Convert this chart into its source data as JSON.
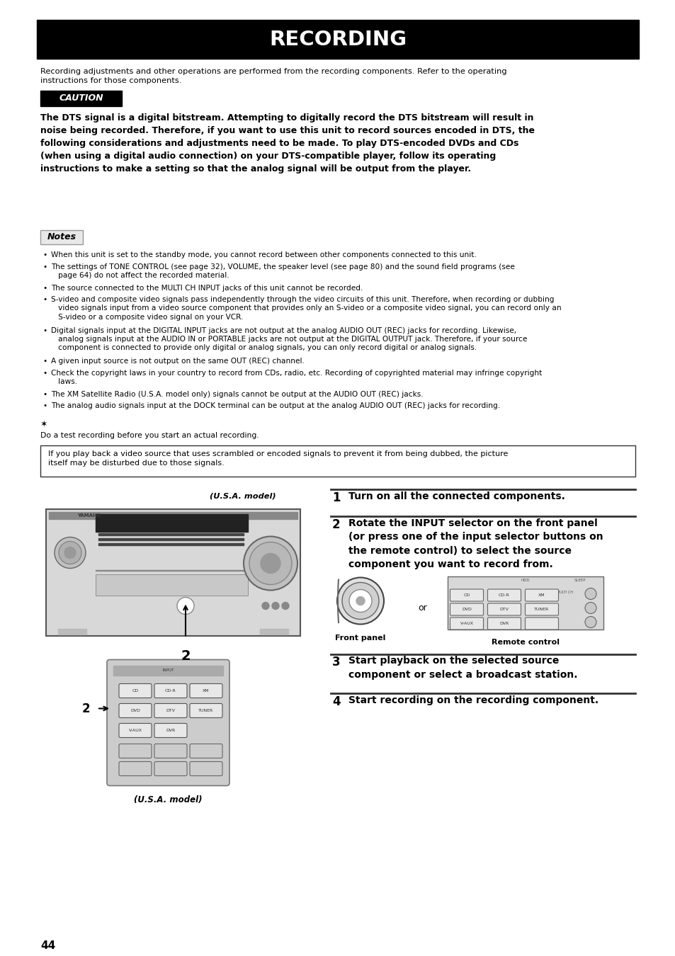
{
  "page_bg": "#ffffff",
  "title": "RECORDING",
  "title_bg": "#000000",
  "title_color": "#ffffff",
  "intro_text": "Recording adjustments and other operations are performed from the recording components. Refer to the operating\ninstructions for those components.",
  "caution_label": "CAUTION",
  "caution_bold_text": "The DTS signal is a digital bitstream. Attempting to digitally record the DTS bitstream will result in\nnoise being recorded. Therefore, if you want to use this unit to record sources encoded in DTS, the\nfollowing considerations and adjustments need to be made. To play DTS-encoded DVDs and CDs\n(when using a digital audio connection) on your DTS-compatible player, follow its operating\ninstructions to make a setting so that the analog signal will be output from the player.",
  "notes_label": "Notes",
  "notes_bullets": [
    "When this unit is set to the standby mode, you cannot record between other components connected to this unit.",
    "The settings of TONE CONTROL (see page 32), VOLUME, the speaker level (see page 80) and the sound field programs (see\n   page 64) do not affect the recorded material.",
    "The source connected to the MULTI CH INPUT jacks of this unit cannot be recorded.",
    "S-video and composite video signals pass independently through the video circuits of this unit. Therefore, when recording or dubbing\n   video signals input from a video source component that provides only an S-video or a composite video signal, you can record only an\n   S-video or a composite video signal on your VCR.",
    "Digital signals input at the DIGITAL INPUT jacks are not output at the analog AUDIO OUT (REC) jacks for recording. Likewise,\n   analog signals input at the AUDIO IN or PORTABLE jacks are not output at the DIGITAL OUTPUT jack. Therefore, if your source\n   component is connected to provide only digital or analog signals, you can only record digital or analog signals.",
    "A given input source is not output on the same OUT (REC) channel.",
    "Check the copyright laws in your country to record from CDs, radio, etc. Recording of copyrighted material may infringe copyright\n   laws.",
    "The XM Satellite Radio (U.S.A. model only) signals cannot be output at the AUDIO OUT (REC) jacks.",
    "The analog audio signals input at the DOCK terminal can be output at the analog AUDIO OUT (REC) jacks for recording."
  ],
  "tip_symbol": "★",
  "tip_text": "Do a test recording before you start an actual recording.",
  "warning_box_text": "If you play back a video source that uses scrambled or encoded signals to prevent it from being dubbed, the picture\nitself may be disturbed due to those signals.",
  "usa_model_label": "(U.S.A. model)",
  "usa_model_label2": "(U.S.A. model)",
  "step1": "Turn on all the connected components.",
  "step2_title": "Rotate the INPUT selector on the front panel\n(or press one of the input selector buttons on\nthe remote control) to select the source\ncomponent you want to record from.",
  "step3": "Start playback on the selected source\ncomponent or select a broadcast station.",
  "step4": "Start recording on the recording component.",
  "front_panel_label": "Front panel",
  "remote_control_label": "Remote control",
  "or_text": "or",
  "page_number": "44"
}
